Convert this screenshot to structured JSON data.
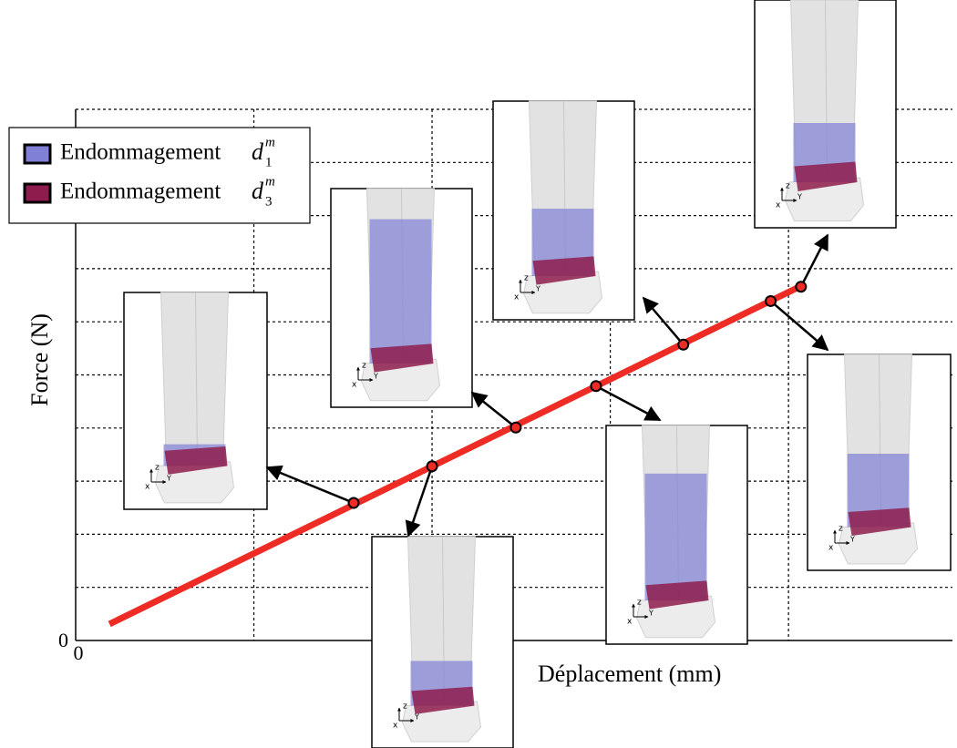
{
  "chart_data": {
    "type": "line",
    "x_label": "Déplacement (mm)",
    "y_label": "Force (N)",
    "xlim": [
      0,
      4.92
    ],
    "ylim": [
      0,
      10
    ],
    "xticks": [
      0
    ],
    "yticks": [
      0
    ],
    "xgrid": [
      1,
      2,
      3,
      4
    ],
    "ygrid": [
      1,
      2,
      3,
      4,
      5,
      6,
      7,
      8,
      9,
      10
    ],
    "grid": true,
    "series": [
      {
        "color": "#ee2b24",
        "x": [
          0.19,
          4.08
        ],
        "y": [
          0.31,
          6.69
        ]
      }
    ],
    "points": {
      "color": "#ee2b24",
      "x": [
        1.56,
        2.0,
        2.47,
        2.92,
        3.41,
        3.9,
        4.07
      ],
      "y": [
        2.59,
        3.28,
        4.01,
        4.79,
        5.57,
        6.39,
        6.66
      ]
    },
    "legend": [
      {
        "name": "Endommagement",
        "symbol": "d",
        "sub": "1",
        "sup": "m",
        "color": "#7f80d6"
      },
      {
        "name": "Endommagement",
        "symbol": "d",
        "sub": "3",
        "sup": "m",
        "color": "#8e1d4e"
      }
    ],
    "legend_position": "upper left",
    "triad": [
      "z",
      "x",
      "Y"
    ]
  }
}
